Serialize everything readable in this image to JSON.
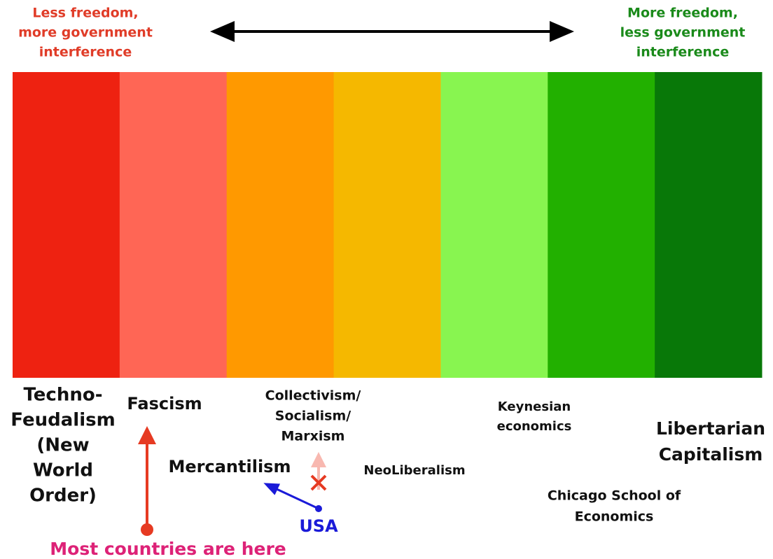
{
  "header": {
    "left": [
      "Less freedom,",
      "more government",
      "interference"
    ],
    "right": [
      "More freedom,",
      "less government",
      "interference"
    ]
  },
  "spectrum": {
    "colors": [
      "#ee2211",
      "#ff6655",
      "#ff9900",
      "#f5b800",
      "#88f550",
      "#22b000",
      "#087808"
    ]
  },
  "labels": {
    "techno_feudalism": [
      "Techno-",
      "Feudalism",
      "(New",
      "World",
      "Order)"
    ],
    "fascism": [
      "Fascism"
    ],
    "collectivism": [
      "Collectivism/",
      "Socialism/",
      "Marxism"
    ],
    "keynesian": [
      "Keynesian",
      "economics"
    ],
    "libertarian": [
      "Libertarian",
      "Capitalism"
    ],
    "mercantilism": [
      "Mercantilism"
    ],
    "neoliberalism": [
      "NeoLiberalism"
    ],
    "chicago": [
      "Chicago School of",
      "Economics"
    ]
  },
  "annotations": {
    "usa": "USA",
    "most_countries": "Most countries are here"
  }
}
